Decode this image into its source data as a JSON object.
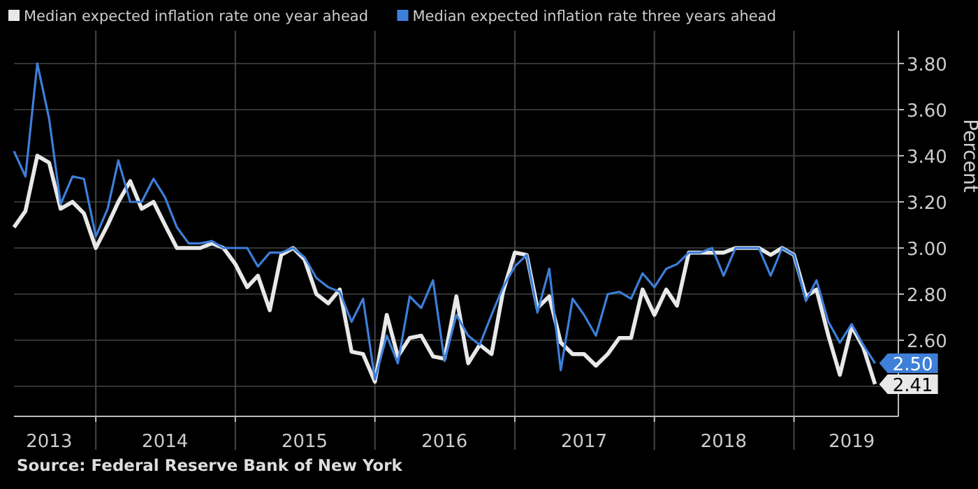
{
  "chart_data": {
    "type": "line",
    "ylabel": "Percent",
    "legend": "top left",
    "grid": true,
    "marker": "none",
    "line_style": "solid",
    "annotations": [
      "Source: Federal Reserve Bank of New York"
    ],
    "x": [
      "2013-06",
      "2013-07",
      "2013-08",
      "2013-09",
      "2013-10",
      "2013-11",
      "2013-12",
      "2014-01",
      "2014-02",
      "2014-03",
      "2014-04",
      "2014-05",
      "2014-06",
      "2014-07",
      "2014-08",
      "2014-09",
      "2014-10",
      "2014-11",
      "2014-12",
      "2015-01",
      "2015-02",
      "2015-03",
      "2015-04",
      "2015-05",
      "2015-06",
      "2015-07",
      "2015-08",
      "2015-09",
      "2015-10",
      "2015-11",
      "2015-12",
      "2016-01",
      "2016-02",
      "2016-03",
      "2016-04",
      "2016-05",
      "2016-06",
      "2016-07",
      "2016-08",
      "2016-09",
      "2016-10",
      "2016-11",
      "2016-12",
      "2017-01",
      "2017-02",
      "2017-03",
      "2017-04",
      "2017-05",
      "2017-06",
      "2017-07",
      "2017-08",
      "2017-09",
      "2017-10",
      "2017-11",
      "2017-12",
      "2018-01",
      "2018-02",
      "2018-03",
      "2018-04",
      "2018-05",
      "2018-06",
      "2018-07",
      "2018-08",
      "2018-09",
      "2018-10",
      "2018-11",
      "2018-12",
      "2019-01",
      "2019-02",
      "2019-03",
      "2019-04",
      "2019-05",
      "2019-06",
      "2019-07",
      "2019-08"
    ],
    "xlim": [
      "2013-06",
      "2019-10"
    ],
    "xticks": [
      {
        "value": "2014",
        "label": null
      },
      {
        "value": "2015",
        "label": null
      },
      {
        "value": "2016",
        "label": null
      },
      {
        "value": "2017",
        "label": null
      },
      {
        "value": "2018",
        "label": null
      },
      {
        "value": "2019",
        "label": null
      },
      {
        "value": "2013-09",
        "label": "2013"
      },
      {
        "value": "2014-07",
        "label": "2014"
      },
      {
        "value": "2015-07",
        "label": "2015"
      },
      {
        "value": "2016-07",
        "label": "2016"
      },
      {
        "value": "2017-07",
        "label": "2017"
      },
      {
        "value": "2018-07",
        "label": "2018"
      },
      {
        "value": "2019-06",
        "label": "2019"
      }
    ],
    "ylim": [
      2.27,
      3.93
    ],
    "yticks": [
      {
        "value": 2.4,
        "label": null
      },
      {
        "value": 2.6,
        "label": "2.60"
      },
      {
        "value": 2.8,
        "label": "2.80"
      },
      {
        "value": 3.0,
        "label": "3.00"
      },
      {
        "value": 3.2,
        "label": "3.20"
      },
      {
        "value": 3.4,
        "label": "3.40"
      },
      {
        "value": 3.6,
        "label": "3.60"
      },
      {
        "value": 3.8,
        "label": "3.80"
      }
    ],
    "series": [
      {
        "name": "Median expected inflation rate one year ahead",
        "color": "#e8e8e8",
        "values": [
          3.09,
          3.16,
          3.4,
          3.37,
          3.17,
          3.2,
          3.15,
          3.0,
          3.1,
          3.2,
          3.29,
          3.17,
          3.2,
          3.1,
          3.0,
          3.0,
          3.0,
          3.02,
          3.0,
          2.93,
          2.83,
          2.88,
          2.73,
          2.97,
          3.0,
          2.95,
          2.8,
          2.76,
          2.82,
          2.55,
          2.54,
          2.42,
          2.71,
          2.53,
          2.61,
          2.62,
          2.53,
          2.52,
          2.79,
          2.5,
          2.58,
          2.54,
          2.81,
          2.98,
          2.97,
          2.74,
          2.79,
          2.59,
          2.54,
          2.54,
          2.49,
          2.54,
          2.61,
          2.61,
          2.82,
          2.71,
          2.82,
          2.75,
          2.98,
          2.98,
          2.98,
          2.98,
          3.0,
          3.0,
          3.0,
          2.97,
          3.0,
          2.97,
          2.79,
          2.82,
          2.62,
          2.45,
          2.66,
          2.57,
          2.41
        ],
        "value_labels": [
          null,
          null,
          null,
          null,
          null,
          null,
          null,
          null,
          null,
          null,
          null,
          null,
          null,
          null,
          null,
          null,
          null,
          null,
          null,
          null,
          null,
          null,
          null,
          null,
          null,
          null,
          null,
          null,
          null,
          null,
          null,
          null,
          null,
          null,
          null,
          null,
          null,
          null,
          null,
          null,
          null,
          null,
          null,
          null,
          null,
          null,
          null,
          null,
          null,
          null,
          null,
          null,
          null,
          null,
          null,
          null,
          null,
          null,
          null,
          null,
          null,
          null,
          null,
          null,
          null,
          null,
          null,
          null,
          null,
          null,
          null,
          null,
          null,
          null,
          "2.41"
        ]
      },
      {
        "name": "Median expected inflation rate three years ahead",
        "color": "#3d7fd9",
        "values": [
          3.42,
          3.31,
          3.8,
          3.56,
          3.19,
          3.31,
          3.3,
          3.05,
          3.17,
          3.38,
          3.2,
          3.2,
          3.3,
          3.22,
          3.09,
          3.02,
          3.02,
          3.03,
          3.0,
          3.0,
          3.0,
          2.92,
          2.98,
          2.98,
          3.0,
          2.96,
          2.87,
          2.83,
          2.81,
          2.68,
          2.78,
          2.43,
          2.62,
          2.5,
          2.79,
          2.74,
          2.86,
          2.51,
          2.71,
          2.62,
          2.58,
          2.71,
          2.83,
          2.92,
          2.97,
          2.72,
          2.91,
          2.47,
          2.78,
          2.71,
          2.62,
          2.8,
          2.81,
          2.78,
          2.89,
          2.83,
          2.91,
          2.93,
          2.98,
          2.98,
          3.0,
          2.88,
          3.0,
          3.0,
          3.0,
          2.88,
          3.0,
          2.97,
          2.77,
          2.86,
          2.68,
          2.59,
          2.67,
          2.58,
          2.5
        ],
        "value_labels": [
          null,
          null,
          null,
          null,
          null,
          null,
          null,
          null,
          null,
          null,
          null,
          null,
          null,
          null,
          null,
          null,
          null,
          null,
          null,
          null,
          null,
          null,
          null,
          null,
          null,
          null,
          null,
          null,
          null,
          null,
          null,
          null,
          null,
          null,
          null,
          null,
          null,
          null,
          null,
          null,
          null,
          null,
          null,
          null,
          null,
          null,
          null,
          null,
          null,
          null,
          null,
          null,
          null,
          null,
          null,
          null,
          null,
          null,
          null,
          null,
          null,
          null,
          null,
          null,
          null,
          null,
          null,
          null,
          null,
          null,
          null,
          null,
          null,
          null,
          "2.50"
        ]
      }
    ]
  }
}
